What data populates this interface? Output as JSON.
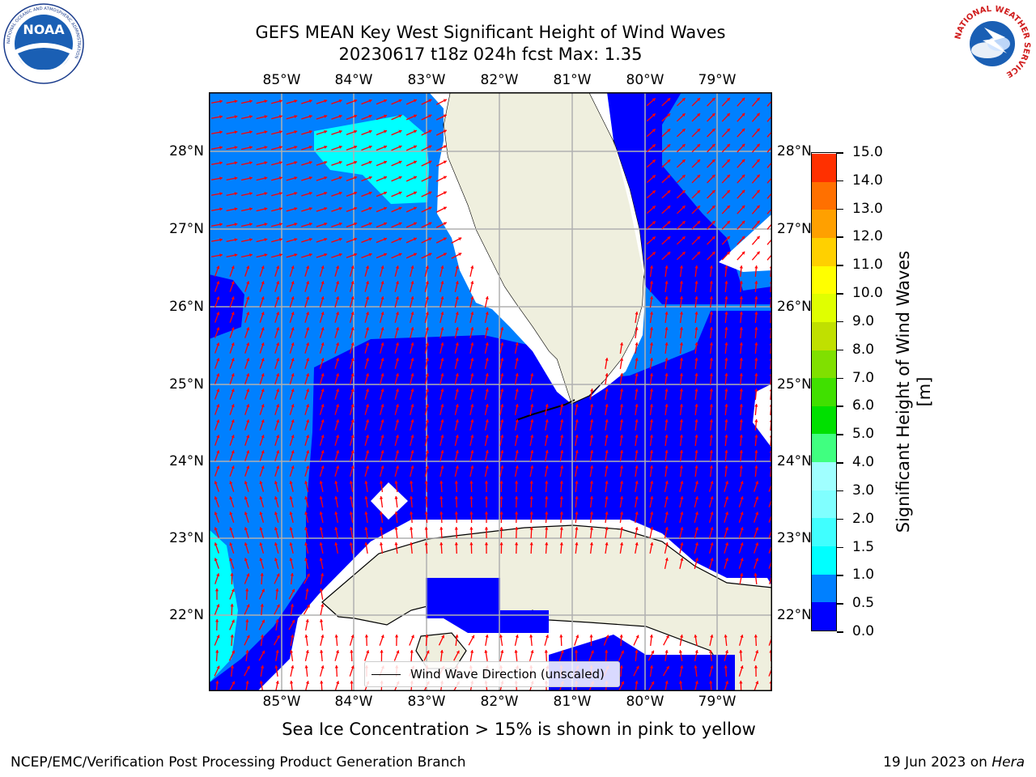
{
  "title_line1": "GEFS MEAN Key West Significant Height of Wind Waves",
  "title_line2": "20230617 t18z 024h fcst   Max: 1.35",
  "lon_labels": [
    "85°W",
    "84°W",
    "83°W",
    "82°W",
    "81°W",
    "80°W",
    "79°W"
  ],
  "lat_labels": [
    "28°N",
    "27°N",
    "26°N",
    "25°N",
    "24°N",
    "23°N",
    "22°N"
  ],
  "legend_label": "Wind Wave Direction (unscaled)",
  "colorbar": {
    "label": "Significant Height of Wind Waves [m]",
    "ticks": [
      "0.0",
      "0.5",
      "1.0",
      "1.5",
      "2.0",
      "3.0",
      "4.0",
      "5.0",
      "6.0",
      "7.0",
      "8.0",
      "9.0",
      "10.0",
      "11.0",
      "12.0",
      "13.0",
      "14.0",
      "15.0"
    ],
    "colors": [
      "#0000ff",
      "#0080ff",
      "#00ffff",
      "#40ffff",
      "#80ffff",
      "#a0ffff",
      "#40ff80",
      "#00e000",
      "#40e000",
      "#80e000",
      "#c0e000",
      "#e0ff00",
      "#ffff00",
      "#ffd000",
      "#ffa000",
      "#ff7000",
      "#ff3000",
      "#ff0000"
    ]
  },
  "ice_note": "Sea Ice Concentration > 15% is shown in pink to yellow",
  "credit": "NCEP/EMC/Verification Post Processing Product Generation Branch",
  "date_prefix": "19 Jun 2023 on ",
  "date_machine": "Hera",
  "logos": {
    "noaa_text": "NOAA",
    "noaa_ring": "NATIONAL OCEANIC AND ATMOSPHERIC ADMINISTRATION",
    "nws_ring": "NATIONAL WEATHER SERVICE"
  },
  "colors": {
    "wave_0_05": "#0000ff",
    "wave_05_10": "#0080ff",
    "wave_10_15": "#00ffff",
    "wave_15_20": "#40ffff",
    "land": "#efefde",
    "arrow": "#ff0000"
  }
}
